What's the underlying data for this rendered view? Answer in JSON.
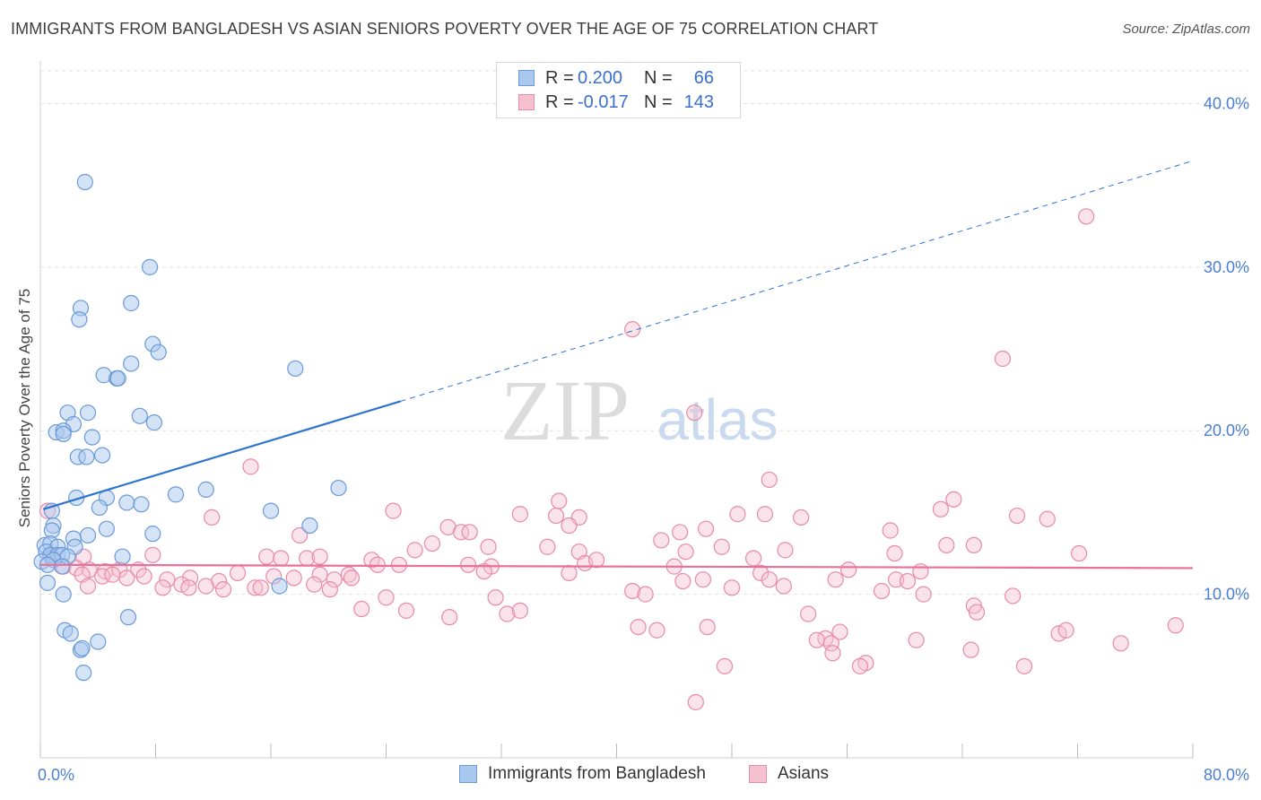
{
  "title": "IMMIGRANTS FROM BANGLADESH VS ASIAN SENIORS POVERTY OVER THE AGE OF 75 CORRELATION CHART",
  "source": "Source: ZipAtlas.com",
  "watermark": {
    "zip": "ZIP",
    "atlas": "atlas"
  },
  "colors": {
    "blue_fill": "#aac8ee",
    "blue_stroke": "#6a9ad8",
    "blue_line": "#2f74d0",
    "pink_fill": "#f5c0d0",
    "pink_stroke": "#e88aa8",
    "pink_line": "#e8709a",
    "grid": "#e3e3e3",
    "tick_text": "#4a7fd4"
  },
  "legend": {
    "rows": [
      {
        "r_label": "R =",
        "r_value": "0.200",
        "n_label": "N =",
        "n_value": "66"
      },
      {
        "r_label": "R =",
        "r_value": "-0.017",
        "n_label": "N =",
        "n_value": "143"
      }
    ]
  },
  "bottom_legend": {
    "series1": "Immigrants from Bangladesh",
    "series2": "Asians"
  },
  "chart_data": {
    "type": "scatter",
    "title": "IMMIGRANTS FROM BANGLADESH VS ASIAN SENIORS POVERTY OVER THE AGE OF 75 CORRELATION CHART",
    "xlabel": "",
    "ylabel": "Seniors Poverty Over the Age of 75",
    "xlim": [
      0,
      80
    ],
    "ylim": [
      0,
      42
    ],
    "x_ticks": [
      {
        "v": 0,
        "label": "0.0%"
      },
      {
        "v": 80,
        "label": "80.0%"
      }
    ],
    "x_minor_ticks": [
      0,
      8,
      16,
      24,
      32,
      40,
      48,
      56,
      64,
      72,
      80
    ],
    "y_ticks": [
      {
        "v": 10,
        "label": "10.0%"
      },
      {
        "v": 20,
        "label": "20.0%"
      },
      {
        "v": 30,
        "label": "30.0%"
      },
      {
        "v": 40,
        "label": "40.0%"
      }
    ],
    "grid": true,
    "series": [
      {
        "name": "Immigrants from Bangladesh",
        "r": 0.2,
        "n": 66,
        "trend": {
          "x0": 0.2,
          "y0": 15.2,
          "x1": 25,
          "y1": 21.8,
          "dash_x1": 80,
          "dash_y1": 36.5
        },
        "points": [
          [
            3.1,
            35.2
          ],
          [
            7.6,
            30.0
          ],
          [
            2.8,
            27.5
          ],
          [
            6.3,
            27.8
          ],
          [
            2.7,
            26.8
          ],
          [
            7.8,
            25.3
          ],
          [
            8.2,
            24.8
          ],
          [
            6.3,
            24.1
          ],
          [
            17.7,
            23.8
          ],
          [
            4.4,
            23.4
          ],
          [
            5.3,
            23.2
          ],
          [
            5.4,
            23.2
          ],
          [
            1.9,
            21.1
          ],
          [
            3.3,
            21.1
          ],
          [
            6.9,
            20.9
          ],
          [
            2.3,
            20.4
          ],
          [
            7.9,
            20.5
          ],
          [
            1.1,
            19.9
          ],
          [
            1.6,
            20.0
          ],
          [
            1.6,
            19.8
          ],
          [
            3.6,
            19.6
          ],
          [
            2.6,
            18.4
          ],
          [
            3.2,
            18.4
          ],
          [
            4.3,
            18.5
          ],
          [
            20.7,
            16.5
          ],
          [
            11.5,
            16.4
          ],
          [
            9.4,
            16.1
          ],
          [
            2.5,
            15.9
          ],
          [
            4.6,
            15.9
          ],
          [
            6.0,
            15.6
          ],
          [
            7.0,
            15.5
          ],
          [
            4.1,
            15.3
          ],
          [
            0.8,
            15.1
          ],
          [
            16.0,
            15.1
          ],
          [
            0.9,
            14.2
          ],
          [
            18.7,
            14.2
          ],
          [
            4.6,
            14.0
          ],
          [
            0.8,
            13.9
          ],
          [
            7.8,
            13.7
          ],
          [
            3.3,
            13.6
          ],
          [
            2.3,
            13.4
          ],
          [
            0.3,
            13.0
          ],
          [
            0.7,
            13.1
          ],
          [
            1.2,
            12.9
          ],
          [
            2.4,
            12.9
          ],
          [
            0.4,
            12.6
          ],
          [
            0.7,
            12.4
          ],
          [
            1.2,
            12.4
          ],
          [
            1.5,
            12.4
          ],
          [
            1.9,
            12.3
          ],
          [
            5.7,
            12.3
          ],
          [
            0.1,
            12.0
          ],
          [
            0.9,
            12.1
          ],
          [
            0.5,
            11.8
          ],
          [
            1.5,
            11.7
          ],
          [
            0.5,
            10.7
          ],
          [
            16.6,
            10.5
          ],
          [
            1.6,
            10.0
          ],
          [
            6.1,
            8.6
          ],
          [
            1.7,
            7.8
          ],
          [
            2.1,
            7.6
          ],
          [
            4.0,
            7.1
          ],
          [
            2.8,
            6.6
          ],
          [
            2.9,
            6.7
          ],
          [
            3.0,
            5.2
          ]
        ]
      },
      {
        "name": "Asians",
        "r": -0.017,
        "n": 143,
        "trend": {
          "x0": 0,
          "y0": 11.8,
          "x1": 80,
          "y1": 11.6
        },
        "points": [
          [
            72.6,
            33.1
          ],
          [
            41.1,
            26.2
          ],
          [
            66.8,
            24.4
          ],
          [
            45.4,
            21.1
          ],
          [
            14.6,
            17.8
          ],
          [
            50.6,
            17.0
          ],
          [
            0.5,
            15.1
          ],
          [
            36.0,
            15.7
          ],
          [
            24.5,
            15.1
          ],
          [
            62.5,
            15.2
          ],
          [
            63.4,
            15.8
          ],
          [
            11.9,
            14.7
          ],
          [
            33.3,
            14.9
          ],
          [
            35.8,
            14.8
          ],
          [
            37.4,
            14.7
          ],
          [
            48.4,
            14.9
          ],
          [
            50.3,
            14.9
          ],
          [
            52.8,
            14.7
          ],
          [
            67.8,
            14.8
          ],
          [
            69.9,
            14.6
          ],
          [
            28.3,
            14.1
          ],
          [
            36.7,
            14.2
          ],
          [
            29.2,
            13.8
          ],
          [
            29.8,
            13.8
          ],
          [
            44.4,
            13.8
          ],
          [
            46.2,
            14.0
          ],
          [
            59.0,
            13.9
          ],
          [
            18.0,
            13.6
          ],
          [
            27.2,
            13.1
          ],
          [
            31.1,
            12.9
          ],
          [
            35.2,
            12.9
          ],
          [
            43.1,
            13.3
          ],
          [
            47.3,
            12.9
          ],
          [
            51.7,
            12.7
          ],
          [
            62.9,
            13.0
          ],
          [
            64.8,
            13.0
          ],
          [
            72.1,
            12.5
          ],
          [
            26.0,
            12.7
          ],
          [
            37.4,
            12.6
          ],
          [
            44.8,
            12.6
          ],
          [
            49.5,
            12.2
          ],
          [
            59.3,
            12.5
          ],
          [
            3.0,
            12.3
          ],
          [
            7.8,
            12.4
          ],
          [
            15.7,
            12.3
          ],
          [
            16.7,
            12.2
          ],
          [
            18.5,
            12.2
          ],
          [
            19.4,
            12.3
          ],
          [
            23.0,
            12.1
          ],
          [
            23.4,
            11.8
          ],
          [
            24.9,
            11.8
          ],
          [
            29.7,
            11.8
          ],
          [
            31.3,
            11.7
          ],
          [
            37.8,
            11.9
          ],
          [
            38.6,
            12.1
          ],
          [
            44.0,
            11.7
          ],
          [
            56.1,
            11.5
          ],
          [
            1.6,
            11.7
          ],
          [
            2.5,
            11.6
          ],
          [
            3.4,
            11.5
          ],
          [
            4.5,
            11.4
          ],
          [
            5.5,
            11.5
          ],
          [
            6.8,
            11.5
          ],
          [
            13.7,
            11.3
          ],
          [
            16.2,
            11.1
          ],
          [
            19.4,
            11.2
          ],
          [
            21.4,
            11.2
          ],
          [
            30.8,
            11.4
          ],
          [
            36.7,
            11.3
          ],
          [
            50.0,
            11.3
          ],
          [
            61.1,
            11.4
          ],
          [
            0.8,
            12.3
          ],
          [
            2.9,
            11.2
          ],
          [
            4.3,
            11.1
          ],
          [
            5.0,
            11.2
          ],
          [
            6.0,
            11.0
          ],
          [
            7.2,
            11.1
          ],
          [
            8.8,
            10.9
          ],
          [
            10.4,
            11.0
          ],
          [
            12.4,
            10.8
          ],
          [
            17.6,
            11.0
          ],
          [
            20.4,
            10.9
          ],
          [
            21.6,
            11.0
          ],
          [
            44.6,
            10.8
          ],
          [
            46.0,
            10.9
          ],
          [
            50.6,
            10.9
          ],
          [
            55.2,
            10.9
          ],
          [
            59.4,
            10.9
          ],
          [
            60.2,
            10.8
          ],
          [
            3.3,
            10.5
          ],
          [
            8.5,
            10.4
          ],
          [
            9.8,
            10.6
          ],
          [
            10.3,
            10.4
          ],
          [
            11.5,
            10.5
          ],
          [
            12.7,
            10.3
          ],
          [
            14.9,
            10.4
          ],
          [
            15.3,
            10.4
          ],
          [
            19.0,
            10.6
          ],
          [
            20.1,
            10.3
          ],
          [
            41.1,
            10.2
          ],
          [
            42.0,
            10.0
          ],
          [
            48.0,
            10.4
          ],
          [
            51.6,
            10.5
          ],
          [
            58.4,
            10.2
          ],
          [
            61.3,
            10.0
          ],
          [
            67.5,
            9.9
          ],
          [
            24.0,
            9.8
          ],
          [
            31.6,
            9.8
          ],
          [
            22.3,
            9.1
          ],
          [
            25.4,
            9.0
          ],
          [
            28.4,
            8.6
          ],
          [
            32.4,
            8.8
          ],
          [
            33.3,
            9.0
          ],
          [
            53.3,
            8.8
          ],
          [
            64.8,
            9.3
          ],
          [
            65.0,
            8.9
          ],
          [
            46.3,
            8.0
          ],
          [
            42.8,
            7.8
          ],
          [
            41.5,
            8.0
          ],
          [
            55.5,
            7.7
          ],
          [
            54.5,
            7.3
          ],
          [
            53.9,
            7.2
          ],
          [
            54.9,
            7.0
          ],
          [
            60.8,
            7.2
          ],
          [
            70.7,
            7.6
          ],
          [
            71.2,
            7.8
          ],
          [
            75.0,
            7.0
          ],
          [
            78.8,
            8.1
          ],
          [
            55.0,
            6.4
          ],
          [
            57.3,
            5.8
          ],
          [
            56.9,
            5.6
          ],
          [
            47.5,
            5.6
          ],
          [
            64.6,
            6.6
          ],
          [
            68.3,
            5.6
          ],
          [
            45.5,
            3.4
          ]
        ]
      }
    ]
  }
}
